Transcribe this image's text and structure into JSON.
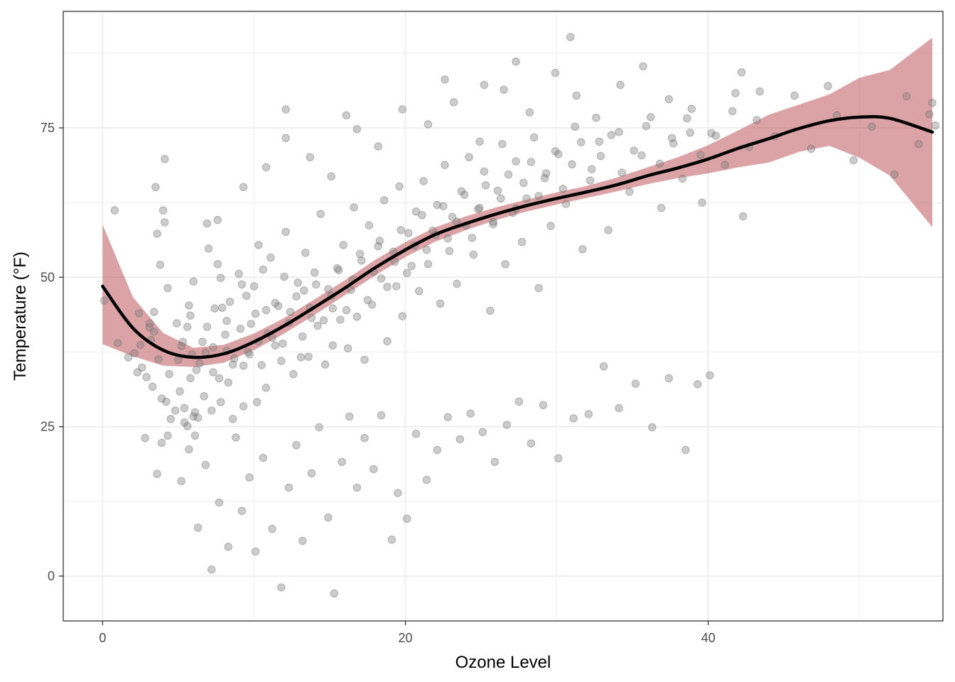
{
  "chart_data": {
    "type": "scatter",
    "xlabel": "Ozone Level",
    "ylabel": "Temperature (°F)",
    "xlim": [
      -2.6,
      55.5
    ],
    "ylim": [
      -7.5,
      94.5
    ],
    "x_ticks": [
      0,
      20,
      40
    ],
    "x_tick_labels": [
      "0",
      "20",
      "40"
    ],
    "y_ticks": [
      0,
      25,
      50,
      75
    ],
    "y_tick_labels": [
      "0",
      "25",
      "50",
      "75"
    ],
    "grid": true,
    "legend": "none",
    "colors": {
      "points": "#808080",
      "smooth_line": "#000000",
      "confidence_band": "#c0575f"
    },
    "smooth": {
      "x": [
        0,
        2,
        4,
        6,
        8,
        10,
        12,
        14,
        16,
        18,
        20,
        22,
        24,
        26,
        28,
        30,
        32,
        34,
        36,
        38,
        40,
        42,
        44,
        46,
        48,
        50,
        52,
        54.8
      ],
      "y": [
        48.5,
        41.5,
        37.8,
        36.6,
        37.2,
        39.2,
        41.9,
        45.0,
        48.2,
        51.6,
        54.6,
        57.2,
        59.0,
        60.6,
        62.0,
        63.2,
        64.3,
        65.5,
        67.0,
        68.3,
        69.8,
        71.6,
        73.2,
        74.9,
        76.2,
        76.8,
        76.6,
        74.3
      ],
      "lower": [
        38.8,
        36.8,
        35.2,
        35.0,
        35.7,
        37.8,
        40.6,
        43.7,
        47.0,
        50.3,
        53.4,
        56.0,
        57.9,
        59.6,
        61.0,
        62.2,
        63.3,
        64.4,
        65.6,
        66.6,
        67.4,
        68.4,
        69.2,
        71.0,
        72.0,
        70.0,
        67.0,
        58.4
      ],
      "upper": [
        58.8,
        46.7,
        40.7,
        38.2,
        38.7,
        40.6,
        43.2,
        46.3,
        49.5,
        52.9,
        55.9,
        58.4,
        60.2,
        61.7,
        63.0,
        64.2,
        65.3,
        66.7,
        68.4,
        70.1,
        72.1,
        74.6,
        77.2,
        78.9,
        80.6,
        83.4,
        84.7,
        90.1
      ]
    },
    "points": [
      [
        0.1,
        46.1
      ],
      [
        0.8,
        61.2
      ],
      [
        1,
        39
      ],
      [
        1.7,
        36.6
      ],
      [
        2.3,
        34.1
      ],
      [
        2.4,
        44
      ],
      [
        2.5,
        38.7
      ],
      [
        2.9,
        33.3
      ],
      [
        3.2,
        39.5
      ],
      [
        3.3,
        31.7
      ],
      [
        3.4,
        44.2
      ],
      [
        3.1,
        42.3
      ],
      [
        3.4,
        40.9
      ],
      [
        3.6,
        57.3
      ],
      [
        3.8,
        52.1
      ],
      [
        4,
        61.2
      ],
      [
        4.2,
        29.2
      ],
      [
        3.5,
        65.1
      ],
      [
        4.1,
        69.8
      ],
      [
        4.1,
        59.2
      ],
      [
        4.3,
        48.2
      ],
      [
        4.5,
        26.3
      ],
      [
        3.9,
        22.3
      ],
      [
        3.6,
        17.1
      ],
      [
        4.3,
        23.5
      ],
      [
        4.8,
        27.7
      ],
      [
        5,
        36.2
      ],
      [
        5.1,
        30.9
      ],
      [
        5.2,
        38.5
      ],
      [
        5.4,
        28.1
      ],
      [
        5.4,
        25.7
      ],
      [
        5.6,
        25.1
      ],
      [
        5.7,
        45.3
      ],
      [
        5.8,
        33.1
      ],
      [
        6,
        49.3
      ],
      [
        6,
        26.7
      ],
      [
        5.6,
        41.7
      ],
      [
        5.9,
        37.1
      ],
      [
        6.1,
        27.4
      ],
      [
        6.1,
        23.5
      ],
      [
        6.2,
        34.5
      ],
      [
        6.3,
        26.5
      ],
      [
        6.6,
        39.2
      ],
      [
        6.8,
        37.4
      ],
      [
        6.7,
        30.1
      ],
      [
        6.9,
        59
      ],
      [
        7,
        54.8
      ],
      [
        7.2,
        27.7
      ],
      [
        7.3,
        34.1
      ],
      [
        7.4,
        44.8
      ],
      [
        7.6,
        52.2
      ],
      [
        7.8,
        49.9
      ],
      [
        7.8,
        29.1
      ],
      [
        7.9,
        44.9
      ],
      [
        8.2,
        42.7
      ],
      [
        8.2,
        37.7
      ],
      [
        8.3,
        32.4
      ],
      [
        8.4,
        45.9
      ],
      [
        8.6,
        26.3
      ],
      [
        8.7,
        36.4
      ],
      [
        9,
        50.6
      ],
      [
        9.2,
        48.8
      ],
      [
        9.3,
        35.2
      ],
      [
        9.3,
        28.4
      ],
      [
        9.5,
        46.9
      ],
      [
        9.7,
        37.1
      ],
      [
        9.8,
        42.2
      ],
      [
        10,
        48.5
      ],
      [
        10.2,
        29.1
      ],
      [
        10.3,
        39.3
      ],
      [
        10.3,
        55.4
      ],
      [
        10.6,
        51.3
      ],
      [
        10.8,
        44.5
      ],
      [
        10.8,
        31.5
      ],
      [
        11.1,
        53.3
      ],
      [
        11.2,
        39.9
      ],
      [
        11.4,
        38.6
      ],
      [
        11.6,
        45.2
      ],
      [
        11.8,
        36
      ],
      [
        12,
        50.1
      ],
      [
        12.1,
        57.6
      ],
      [
        12.4,
        44.2
      ],
      [
        12.6,
        33.8
      ],
      [
        12.9,
        49.1
      ],
      [
        13.1,
        36.6
      ],
      [
        13.3,
        47.8
      ],
      [
        13.4,
        54.1
      ],
      [
        13.6,
        36.7
      ],
      [
        13.8,
        43.2
      ],
      [
        14,
        50.8
      ],
      [
        14.2,
        41.9
      ],
      [
        14.4,
        60.6
      ],
      [
        14.7,
        35.4
      ],
      [
        14.9,
        48
      ],
      [
        15.2,
        44.8
      ],
      [
        15.2,
        38.6
      ],
      [
        15.5,
        51.5
      ],
      [
        15.7,
        42.9
      ],
      [
        15.9,
        55.4
      ],
      [
        16.2,
        38.1
      ],
      [
        16.4,
        47.9
      ],
      [
        16.6,
        61.7
      ],
      [
        16.8,
        43.4
      ],
      [
        17.1,
        52.8
      ],
      [
        17.3,
        36.2
      ],
      [
        17.6,
        58.7
      ],
      [
        17.8,
        45.4
      ],
      [
        18.2,
        55.2
      ],
      [
        18.4,
        49.8
      ],
      [
        18.6,
        62.9
      ],
      [
        18.8,
        39.3
      ],
      [
        19.2,
        54.3
      ],
      [
        19.4,
        48.5
      ],
      [
        19.6,
        65.2
      ],
      [
        19.8,
        43.5
      ],
      [
        20.2,
        57.4
      ],
      [
        20.4,
        51.9
      ],
      [
        20.7,
        61
      ],
      [
        20.9,
        47.7
      ],
      [
        21.2,
        66.1
      ],
      [
        21.4,
        54.6
      ],
      [
        21.8,
        57.8
      ],
      [
        22.1,
        62.1
      ],
      [
        22.3,
        45.6
      ],
      [
        22.6,
        68.8
      ],
      [
        22.8,
        56.5
      ],
      [
        23.1,
        60.1
      ],
      [
        23.4,
        48.9
      ],
      [
        23.7,
        64.4
      ],
      [
        24,
        58.7
      ],
      [
        24.2,
        70.1
      ],
      [
        24.5,
        53.8
      ],
      [
        24.8,
        61.4
      ],
      [
        25.2,
        67.7
      ],
      [
        25.6,
        44.4
      ],
      [
        25.8,
        58.9
      ],
      [
        26.1,
        64.5
      ],
      [
        26.4,
        72.3
      ],
      [
        26.6,
        52.2
      ],
      [
        27.1,
        60.8
      ],
      [
        27.3,
        69.4
      ],
      [
        27.7,
        55.9
      ],
      [
        28,
        63.2
      ],
      [
        28.5,
        73.4
      ],
      [
        28.8,
        48.2
      ],
      [
        29.2,
        66.6
      ],
      [
        29.6,
        58.6
      ],
      [
        30.1,
        70.6
      ],
      [
        30.6,
        62.3
      ],
      [
        31.2,
        75.2
      ],
      [
        31.7,
        54.7
      ],
      [
        32.3,
        68.1
      ],
      [
        32.8,
        72.7
      ],
      [
        33.4,
        57.9
      ],
      [
        34.1,
        74.3
      ],
      [
        34.8,
        64.3
      ],
      [
        35.6,
        70.4
      ],
      [
        36.2,
        76.8
      ],
      [
        36.9,
        61.6
      ],
      [
        37.6,
        73.3
      ],
      [
        38.3,
        66.5
      ],
      [
        38.9,
        78.2
      ],
      [
        39.6,
        62.5
      ],
      [
        40.2,
        74.1
      ],
      [
        41.1,
        68.8
      ],
      [
        41.8,
        80.8
      ],
      [
        42.3,
        60.2
      ],
      [
        43.2,
        76.3
      ],
      [
        44.4,
        73.6
      ],
      [
        45.7,
        80.4
      ],
      [
        46.8,
        71.5
      ],
      [
        47.9,
        82
      ],
      [
        48.5,
        77.1
      ],
      [
        49.6,
        69.6
      ],
      [
        50.8,
        75.2
      ],
      [
        52.3,
        67.2
      ],
      [
        53.1,
        80.3
      ],
      [
        53.9,
        72.3
      ],
      [
        54.6,
        77.3
      ],
      [
        54.8,
        79.2
      ],
      [
        55,
        75.4
      ],
      [
        2.1,
        37.3
      ],
      [
        2.6,
        34.9
      ],
      [
        3.1,
        41.6
      ],
      [
        3.7,
        36.3
      ],
      [
        4.4,
        33.8
      ],
      [
        4.9,
        42.3
      ],
      [
        5.3,
        39.2
      ],
      [
        5.8,
        43.6
      ],
      [
        6.4,
        35.6
      ],
      [
        6.9,
        41.7
      ],
      [
        7.3,
        38.3
      ],
      [
        7.7,
        33.1
      ],
      [
        8.1,
        40.4
      ],
      [
        8.6,
        35.4
      ],
      [
        9.1,
        41.4
      ],
      [
        9.6,
        37.5
      ],
      [
        10.1,
        43.9
      ],
      [
        10.5,
        35.3
      ],
      [
        10.9,
        40.6
      ],
      [
        11.4,
        45.7
      ],
      [
        11.9,
        38.9
      ],
      [
        12.3,
        42.4
      ],
      [
        12.8,
        46.8
      ],
      [
        13.2,
        40.1
      ],
      [
        13.7,
        44.9
      ],
      [
        14.1,
        48.8
      ],
      [
        14.6,
        42.8
      ],
      [
        15.1,
        46.9
      ],
      [
        15.6,
        51.2
      ],
      [
        16.1,
        44.5
      ],
      [
        16.5,
        49.6
      ],
      [
        17,
        53.9
      ],
      [
        17.5,
        46.2
      ],
      [
        17.9,
        50.9
      ],
      [
        18.3,
        56.1
      ],
      [
        18.8,
        48.4
      ],
      [
        19.3,
        52.6
      ],
      [
        19.7,
        57.9
      ],
      [
        20.1,
        50.7
      ],
      [
        20.6,
        55.3
      ],
      [
        21.1,
        60.4
      ],
      [
        21.5,
        52.2
      ],
      [
        22,
        57.1
      ],
      [
        22.5,
        61.9
      ],
      [
        22.9,
        54.4
      ],
      [
        23.4,
        59.3
      ],
      [
        23.9,
        63.8
      ],
      [
        24.4,
        56.6
      ],
      [
        24.9,
        61.6
      ],
      [
        25.3,
        65.4
      ],
      [
        25.8,
        59.3
      ],
      [
        26.3,
        63.2
      ],
      [
        26.8,
        67.2
      ],
      [
        27.3,
        61.5
      ],
      [
        27.8,
        65.8
      ],
      [
        28.3,
        69.3
      ],
      [
        28.8,
        63.6
      ],
      [
        29.3,
        67.4
      ],
      [
        29.9,
        71.1
      ],
      [
        30.4,
        64.8
      ],
      [
        31,
        68.9
      ],
      [
        31.6,
        72.6
      ],
      [
        32.2,
        66.2
      ],
      [
        32.9,
        70.3
      ],
      [
        33.6,
        73.8
      ],
      [
        34.3,
        67.5
      ],
      [
        35.1,
        71.2
      ],
      [
        35.9,
        75.3
      ],
      [
        36.8,
        69
      ],
      [
        37.7,
        72.4
      ],
      [
        38.6,
        76.6
      ],
      [
        39.5,
        70.5
      ],
      [
        40.5,
        73.7
      ],
      [
        41.6,
        77.8
      ],
      [
        42.7,
        71.8
      ],
      [
        2.8,
        23.1
      ],
      [
        3.9,
        29.7
      ],
      [
        5.2,
        15.9
      ],
      [
        5.7,
        21.2
      ],
      [
        6.3,
        8.1
      ],
      [
        6.8,
        18.6
      ],
      [
        7.2,
        1.1
      ],
      [
        7.7,
        12.3
      ],
      [
        8.3,
        4.9
      ],
      [
        8.8,
        23.2
      ],
      [
        9.2,
        10.9
      ],
      [
        9.7,
        16.5
      ],
      [
        10.1,
        4.1
      ],
      [
        10.6,
        19.8
      ],
      [
        11.2,
        7.9
      ],
      [
        11.8,
        -1.9
      ],
      [
        12.3,
        14.8
      ],
      [
        12.8,
        21.9
      ],
      [
        13.2,
        5.9
      ],
      [
        13.8,
        17.2
      ],
      [
        14.3,
        24.9
      ],
      [
        14.9,
        9.8
      ],
      [
        15.3,
        -2.9
      ],
      [
        15.8,
        19.1
      ],
      [
        16.3,
        26.7
      ],
      [
        16.8,
        14.8
      ],
      [
        17.3,
        23.1
      ],
      [
        17.9,
        17.9
      ],
      [
        18.4,
        26.9
      ],
      [
        19.1,
        6.1
      ],
      [
        19.5,
        13.9
      ],
      [
        20.1,
        9.6
      ],
      [
        20.7,
        23.8
      ],
      [
        21.4,
        16.1
      ],
      [
        22.1,
        21.1
      ],
      [
        22.8,
        26.6
      ],
      [
        23.6,
        22.9
      ],
      [
        24.3,
        27.2
      ],
      [
        25.1,
        24.1
      ],
      [
        25.9,
        19.1
      ],
      [
        26.7,
        25.3
      ],
      [
        27.5,
        29.2
      ],
      [
        28.3,
        22.2
      ],
      [
        29.1,
        28.6
      ],
      [
        30.1,
        19.7
      ],
      [
        31.1,
        26.4
      ],
      [
        32.1,
        27.1
      ],
      [
        33.1,
        35.1
      ],
      [
        34.1,
        28.1
      ],
      [
        35.2,
        32.2
      ],
      [
        36.3,
        24.9
      ],
      [
        37.4,
        33.1
      ],
      [
        38.5,
        21.1
      ],
      [
        39.3,
        32.1
      ],
      [
        40.1,
        33.6
      ],
      [
        7.6,
        59.6
      ],
      [
        9.3,
        65.1
      ],
      [
        10.8,
        68.4
      ],
      [
        12.1,
        73.3
      ],
      [
        13.7,
        70.1
      ],
      [
        15.1,
        66.9
      ],
      [
        16.8,
        74.8
      ],
      [
        18.2,
        71.9
      ],
      [
        19.8,
        78.1
      ],
      [
        21.5,
        75.6
      ],
      [
        23.2,
        79.3
      ],
      [
        24.9,
        72.7
      ],
      [
        26.5,
        81.4
      ],
      [
        28.2,
        77.6
      ],
      [
        29.9,
        84.2
      ],
      [
        31.3,
        80.4
      ],
      [
        32.6,
        76.7
      ],
      [
        34.2,
        82.2
      ],
      [
        35.7,
        85.3
      ],
      [
        37.4,
        79.8
      ],
      [
        38.8,
        74.2
      ],
      [
        30.9,
        90.2
      ],
      [
        27.3,
        86.1
      ],
      [
        25.2,
        82.2
      ],
      [
        22.6,
        83.1
      ],
      [
        16.1,
        77.1
      ],
      [
        12.1,
        78.1
      ],
      [
        42.2,
        84.3
      ],
      [
        43.4,
        81.1
      ]
    ]
  }
}
